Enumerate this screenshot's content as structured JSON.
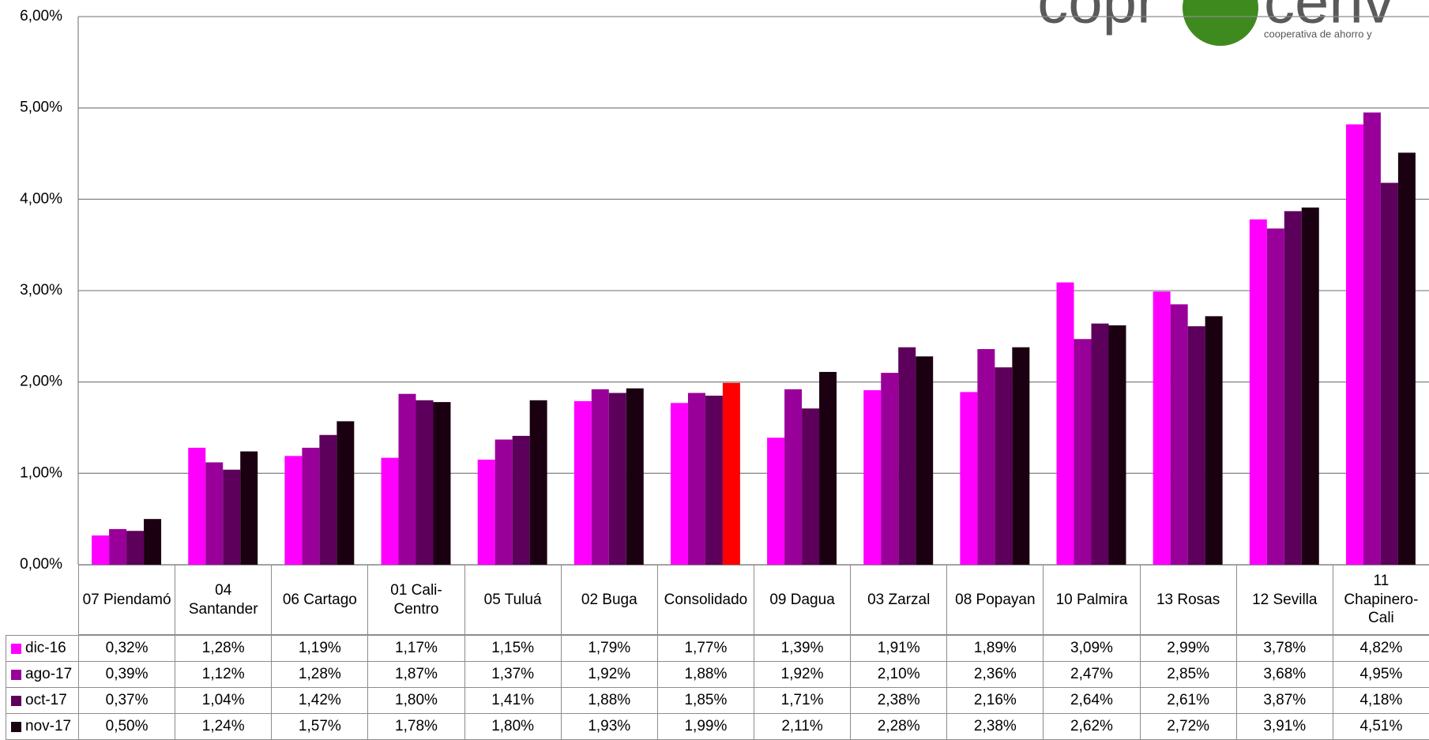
{
  "chart_data": {
    "type": "bar",
    "brand_left": "copr",
    "brand_right": "cenv",
    "brand_tagline": "cooperativa de ahorro y",
    "categories": [
      "07 Piendamó",
      "04 Santander",
      "06 Cartago",
      "01 Cali-Centro",
      "05 Tuluá",
      "02 Buga",
      "Consolidado",
      "09 Dagua",
      "03 Zarzal",
      "08 Popayan",
      "10 Palmira",
      "13 Rosas",
      "12 Sevilla",
      "11 Chapinero-Cali"
    ],
    "series": [
      {
        "name": "dic-16",
        "color": "#ff00ff",
        "values": [
          0.32,
          1.28,
          1.19,
          1.17,
          1.15,
          1.79,
          1.77,
          1.39,
          1.91,
          1.89,
          3.09,
          2.99,
          3.78,
          4.82
        ],
        "value_labels": [
          "0,32%",
          "1,28%",
          "1,19%",
          "1,17%",
          "1,15%",
          "1,79%",
          "1,77%",
          "1,39%",
          "1,91%",
          "1,89%",
          "3,09%",
          "2,99%",
          "3,78%",
          "4,82%"
        ]
      },
      {
        "name": "ago-17",
        "color": "#990099",
        "values": [
          0.39,
          1.12,
          1.28,
          1.87,
          1.37,
          1.92,
          1.88,
          1.92,
          2.1,
          2.36,
          2.47,
          2.85,
          3.68,
          4.95
        ],
        "value_labels": [
          "0,39%",
          "1,12%",
          "1,28%",
          "1,87%",
          "1,37%",
          "1,92%",
          "1,88%",
          "1,92%",
          "2,10%",
          "2,36%",
          "2,47%",
          "2,85%",
          "3,68%",
          "4,95%"
        ]
      },
      {
        "name": "oct-17",
        "color": "#5c005c",
        "values": [
          0.37,
          1.04,
          1.42,
          1.8,
          1.41,
          1.88,
          1.85,
          1.71,
          2.38,
          2.16,
          2.64,
          2.61,
          3.87,
          4.18
        ],
        "value_labels": [
          "0,37%",
          "1,04%",
          "1,42%",
          "1,80%",
          "1,41%",
          "1,88%",
          "1,85%",
          "1,71%",
          "2,38%",
          "2,16%",
          "2,64%",
          "2,61%",
          "3,87%",
          "4,18%"
        ]
      },
      {
        "name": "nov-17",
        "color": "#1a0010",
        "highlight": {
          "category": "Consolidado",
          "color": "#ff0000"
        },
        "values": [
          0.5,
          1.24,
          1.57,
          1.78,
          1.8,
          1.93,
          1.99,
          2.11,
          2.28,
          2.38,
          2.62,
          2.72,
          3.91,
          4.51
        ],
        "value_labels": [
          "0,50%",
          "1,24%",
          "1,57%",
          "1,78%",
          "1,80%",
          "1,93%",
          "1,99%",
          "2,11%",
          "2,28%",
          "2,38%",
          "2,62%",
          "2,72%",
          "3,91%",
          "4,51%"
        ]
      }
    ],
    "ylim": [
      0,
      6
    ],
    "yticks": [
      {
        "value": 0,
        "label": "0,00%"
      },
      {
        "value": 1,
        "label": "1,00%"
      },
      {
        "value": 2,
        "label": "2,00%"
      },
      {
        "value": 3,
        "label": "3,00%"
      },
      {
        "value": 4,
        "label": "4,00%"
      },
      {
        "value": 5,
        "label": "5,00%"
      },
      {
        "value": 6,
        "label": "6,00%"
      }
    ],
    "grid": true
  }
}
